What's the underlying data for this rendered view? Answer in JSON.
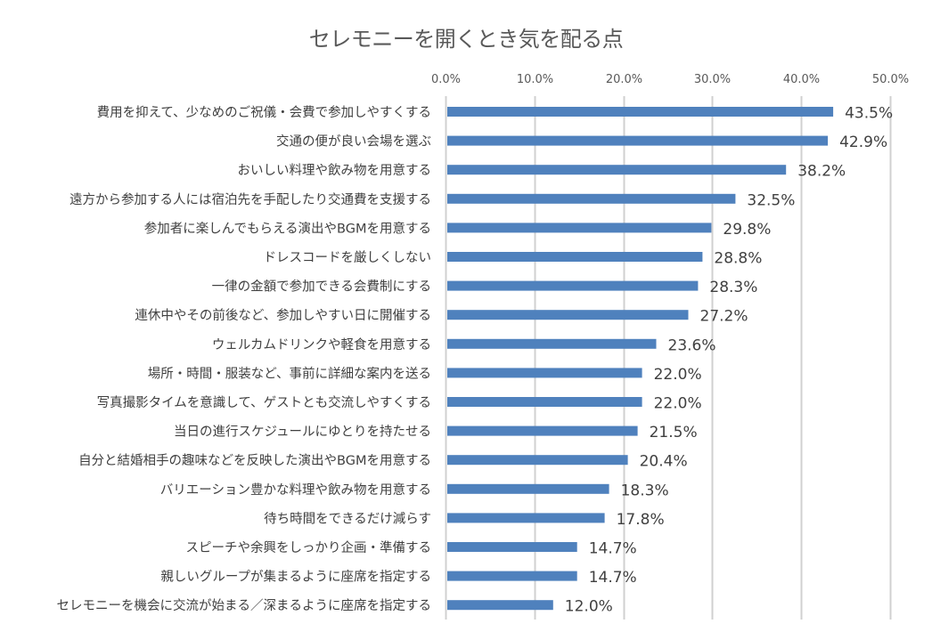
{
  "chart_data": {
    "type": "bar",
    "orientation": "horizontal",
    "title": "セレモニーを開くとき気を配る点",
    "xlabel": "",
    "ylabel": "",
    "xlim": [
      0,
      50
    ],
    "x_ticks": [
      "0.0%",
      "10.0%",
      "20.0%",
      "30.0%",
      "40.0%",
      "50.0%"
    ],
    "x_tick_values": [
      0,
      10,
      20,
      30,
      40,
      50
    ],
    "x_axis_position": "top",
    "grid": true,
    "legend": "none",
    "bar_color": "#4f81bd",
    "categories": [
      "費用を抑えて、少なめのご祝儀・会費で参加しやすくする",
      "交通の便が良い会場を選ぶ",
      "おいしい料理や飲み物を用意する",
      "遠方から参加する人には宿泊先を手配したり交通費を支援する",
      "参加者に楽しんでもらえる演出やBGMを用意する",
      "ドレスコードを厳しくしない",
      "一律の金額で参加できる会費制にする",
      "連休中やその前後など、参加しやすい日に開催する",
      "ウェルカムドリンクや軽食を用意する",
      "場所・時間・服装など、事前に詳細な案内を送る",
      "写真撮影タイムを意識して、ゲストとも交流しやすくする",
      "当日の進行スケジュールにゆとりを持たせる",
      "自分と結婚相手の趣味などを反映した演出やBGMを用意する",
      "バリエーション豊かな料理や飲み物を用意する",
      "待ち時間をできるだけ減らす",
      "スピーチや余興をしっかり企画・準備する",
      "親しいグループが集まるように座席を指定する",
      "セレモニーを機会に交流が始まる／深まるように座席を指定する"
    ],
    "values": [
      43.5,
      42.9,
      38.2,
      32.5,
      29.8,
      28.8,
      28.3,
      27.2,
      23.6,
      22.0,
      22.0,
      21.5,
      20.4,
      18.3,
      17.8,
      14.7,
      14.7,
      12.0
    ],
    "data_labels": [
      "43.5%",
      "42.9%",
      "38.2%",
      "32.5%",
      "29.8%",
      "28.8%",
      "28.3%",
      "27.2%",
      "23.6%",
      "22.0%",
      "22.0%",
      "21.5%",
      "20.4%",
      "18.3%",
      "17.8%",
      "14.7%",
      "14.7%",
      "12.0%"
    ]
  }
}
